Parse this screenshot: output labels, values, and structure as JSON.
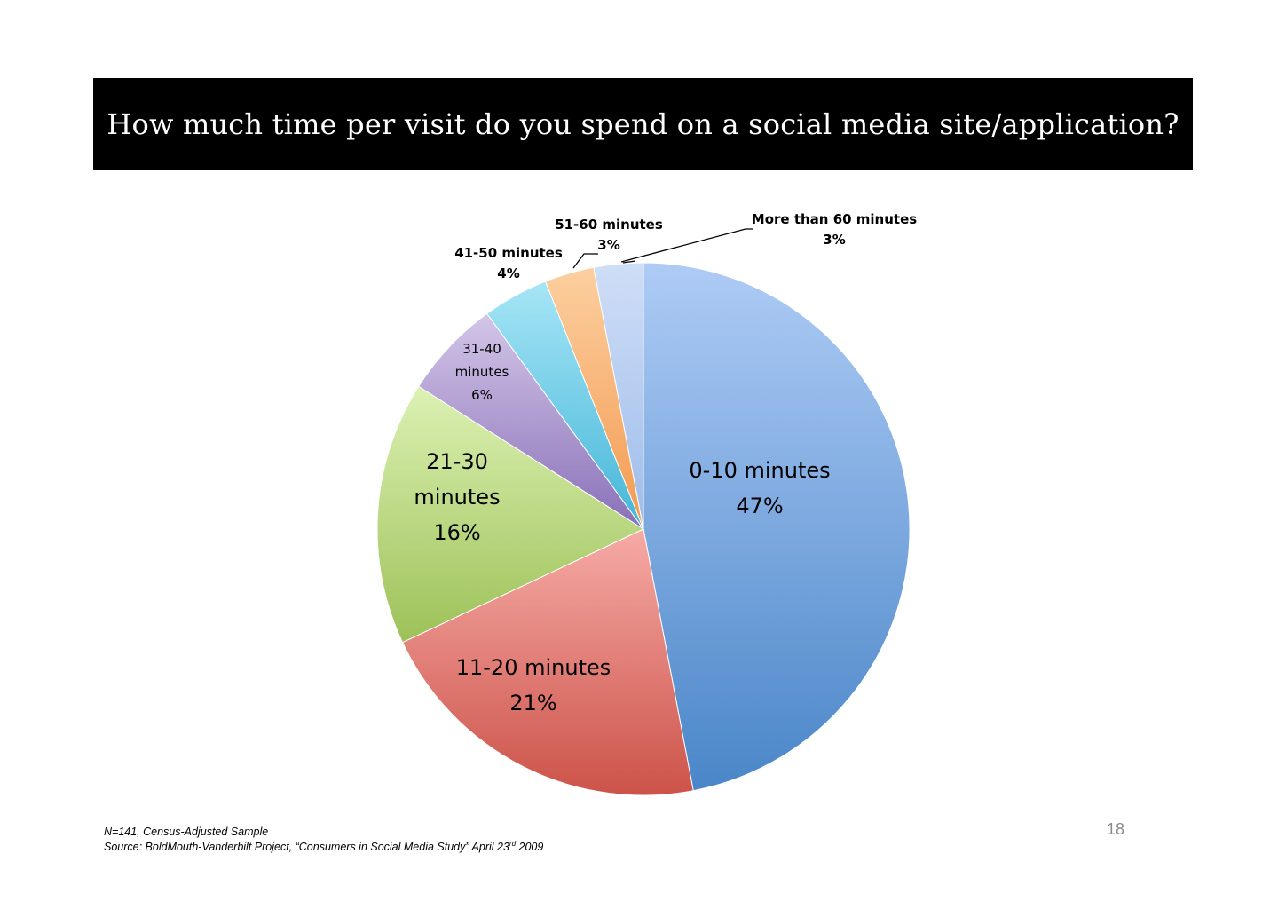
{
  "slide": {
    "title": "How much time per visit do you spend on a social media site/application?",
    "page_number": "18"
  },
  "footnote": {
    "line1": "N=141, Census-Adjusted Sample",
    "line2_prefix": "Source: BoldMouth-Vanderbilt Project, “Consumers in Social Media Study” April 23",
    "line2_sup": "rd",
    "line2_suffix": " 2009"
  },
  "chart_data": {
    "type": "pie",
    "title": "How much time per visit do you spend on a social media site/application?",
    "slices": [
      {
        "label": "0-10 minutes",
        "value": 47,
        "display": "47%",
        "color_light": "#aecbf5",
        "color_dark": "#4a86c8"
      },
      {
        "label": "11-20 minutes",
        "value": 21,
        "display": "21%",
        "color_light": "#f6aaa6",
        "color_dark": "#cc5349"
      },
      {
        "label": "21-30 minutes",
        "value": 16,
        "display": "16%",
        "color_light": "#dcf1b3",
        "color_dark": "#9dc158"
      },
      {
        "label": "31-40 minutes",
        "value": 6,
        "display": "6%",
        "color_light": "#d3c6e8",
        "color_dark": "#8970b8"
      },
      {
        "label": "41-50 minutes",
        "value": 4,
        "display": "4%",
        "color_light": "#a6e5f6",
        "color_dark": "#44b6d8"
      },
      {
        "label": "51-60 minutes",
        "value": 3,
        "display": "3%",
        "color_light": "#fccfa0",
        "color_dark": "#f39a50"
      },
      {
        "label": "More than 60 minutes",
        "value": 3,
        "display": "3%",
        "color_light": "#cfdef7",
        "color_dark": "#9dbcea"
      }
    ]
  }
}
